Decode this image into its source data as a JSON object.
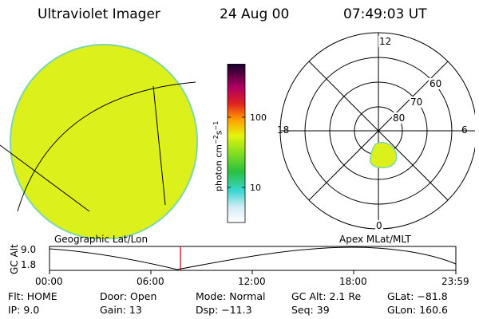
{
  "header": {
    "instrument": "Ultraviolet Imager",
    "date": "24 Aug 00",
    "time": "07:49:03 UT"
  },
  "colorbar": {
    "unit_label": "photon cm",
    "unit_exp1": "−2",
    "unit_mid": "s",
    "unit_exp2": "−1",
    "ticks": [
      "100",
      "10"
    ]
  },
  "polar_plot": {
    "mlt_labels": {
      "top": "12",
      "left": "18",
      "right": "6",
      "bottom": "0"
    },
    "lat_labels": [
      "60",
      "70",
      "80"
    ]
  },
  "timeline": {
    "y_axis_label": "GC Alt",
    "y_ticks": [
      "9.0",
      "1.8"
    ],
    "left_caption": "Geographic Lat/Lon",
    "right_caption": "Apex MLat/MLT",
    "x_ticks": [
      "00:00",
      "06:00",
      "12:00",
      "18:00",
      "23:59"
    ]
  },
  "info": {
    "flt": "Flt: HOME",
    "ip": "IP:  9.0",
    "door": "Door: Open",
    "gain": "Gain: 13",
    "mode": "Mode: Normal",
    "dsp": "Dsp:  −11.3",
    "gcalt": "GC Alt: 2.1 Re",
    "seq": "Seq: 39",
    "glat": "GLat: −81.8",
    "glon": "GLon: 160.6"
  },
  "colors": {
    "image_fill": "#dcf01c",
    "image_edge": "#7fd7a8",
    "marker": "#cc0000"
  }
}
